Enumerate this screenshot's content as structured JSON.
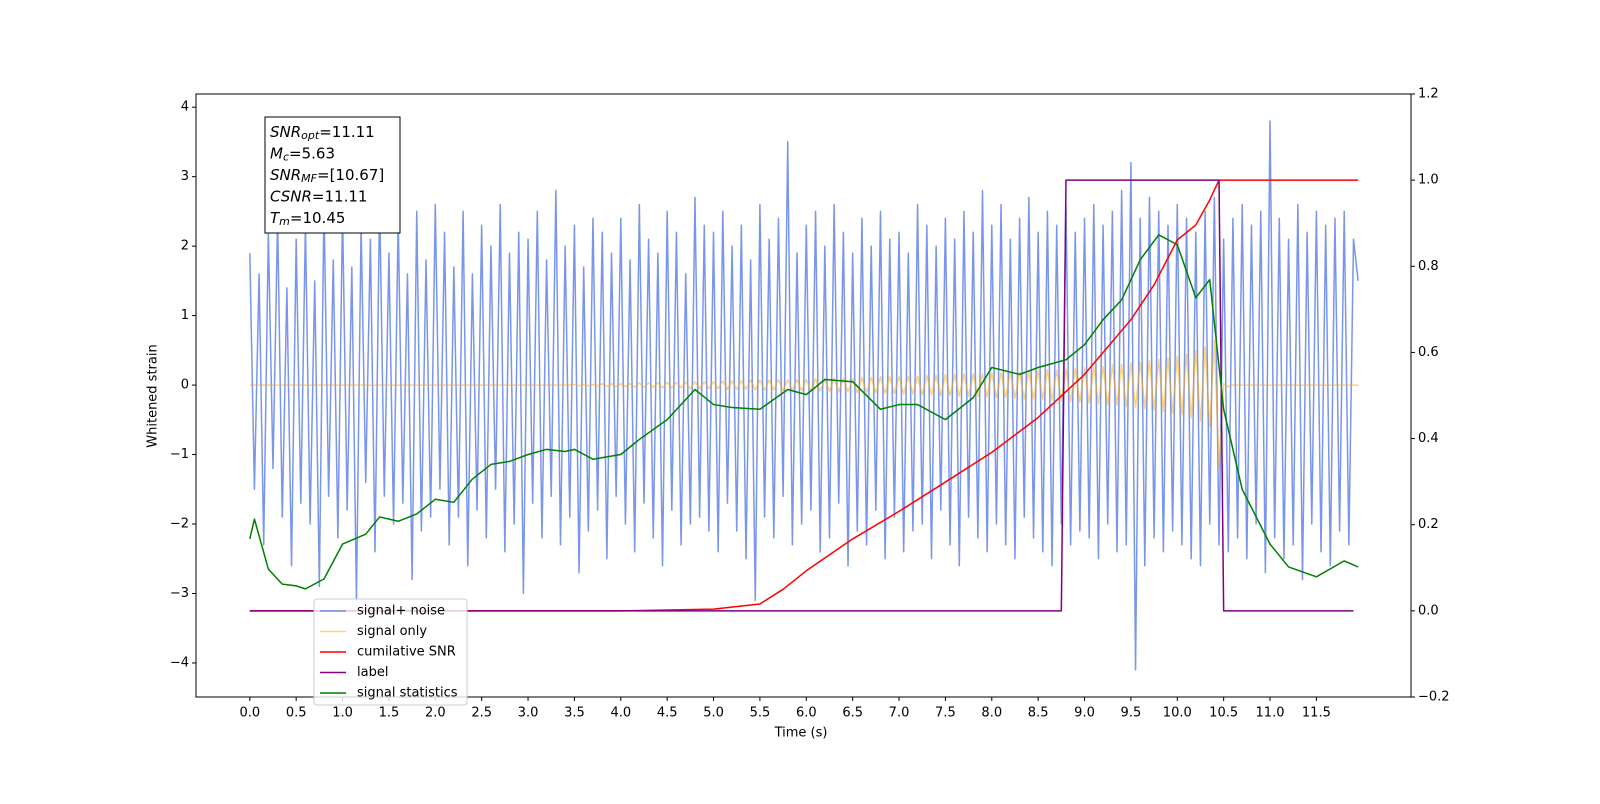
{
  "chart_data": {
    "type": "line",
    "xlabel": "Time (s)",
    "ylabel": "Whitened strain",
    "xlim": [
      -0.58,
      12.52
    ],
    "ylim": [
      -4.49,
      4.19
    ],
    "y2lim": [
      -0.2,
      1.2
    ],
    "xticks": [
      {
        "value": 0,
        "label": "0.0"
      },
      0.5,
      {
        "value": 1,
        "label": "1.0"
      },
      1.5,
      {
        "value": 2,
        "label": "2.0"
      },
      2.5,
      {
        "value": 3,
        "label": "3.0"
      },
      3.5,
      {
        "value": 4,
        "label": "4.0"
      },
      4.5,
      {
        "value": 5,
        "label": "5.0"
      },
      5.5,
      {
        "value": 6,
        "label": "6.0"
      },
      6.5,
      {
        "value": 7,
        "label": "7.0"
      },
      7.5,
      {
        "value": 8,
        "label": "8.0"
      },
      8.5,
      {
        "value": 9,
        "label": "9.0"
      },
      9.5,
      {
        "value": 10,
        "label": "10.0"
      },
      10.5,
      {
        "value": 11,
        "label": "11.0"
      },
      11.5
    ],
    "yticks": [
      {
        "value": -4,
        "label": "−4"
      },
      {
        "value": -3,
        "label": "−3"
      },
      {
        "value": -2,
        "label": "−2"
      },
      {
        "value": -1,
        "label": "−1"
      },
      0,
      1,
      2,
      3,
      4
    ],
    "y2ticks": [
      {
        "value": -0.2,
        "label": "−0.2"
      },
      {
        "value": 0,
        "label": "0.0"
      },
      0.2,
      0.4,
      0.6,
      0.8,
      {
        "value": 1,
        "label": "1.0"
      },
      1.2
    ],
    "legend_loc": "lower left",
    "annotations": [
      {
        "symbol": "SNR",
        "sub": "opt",
        "text": "=11.11"
      },
      {
        "symbol": "M",
        "sub": "c",
        "text": "=5.63"
      },
      {
        "symbol": "SNR",
        "sub": "MF",
        "text": "=[10.67]"
      },
      {
        "symbol": "CSNR",
        "text": "=11.11"
      },
      {
        "symbol": "T",
        "sub": "m",
        "text": "=10.45"
      }
    ],
    "x": [
      0,
      0.05,
      0.1,
      0.15,
      0.2,
      0.25,
      0.3,
      0.35,
      0.4,
      0.45,
      0.5,
      0.55,
      0.6,
      0.65,
      0.7,
      0.75,
      0.8,
      0.85,
      0.9,
      0.95,
      1,
      1.05,
      1.1,
      1.15,
      1.2,
      1.25,
      1.3,
      1.35,
      1.4,
      1.45,
      1.5,
      1.55,
      1.6,
      1.65,
      1.7,
      1.75,
      1.8,
      1.85,
      1.9,
      1.95,
      2,
      2.05,
      2.1,
      2.15,
      2.2,
      2.25,
      2.3,
      2.35,
      2.4,
      2.45,
      2.5,
      2.55,
      2.6,
      2.65,
      2.7,
      2.75,
      2.8,
      2.85,
      2.9,
      2.95,
      3,
      3.05,
      3.1,
      3.15,
      3.2,
      3.25,
      3.3,
      3.35,
      3.4,
      3.45,
      3.5,
      3.55,
      3.6,
      3.65,
      3.7,
      3.75,
      3.8,
      3.85,
      3.9,
      3.95,
      4,
      4.05,
      4.1,
      4.15,
      4.2,
      4.25,
      4.3,
      4.35,
      4.4,
      4.45,
      4.5,
      4.55,
      4.6,
      4.65,
      4.7,
      4.75,
      4.8,
      4.85,
      4.9,
      4.95,
      5,
      5.05,
      5.1,
      5.15,
      5.2,
      5.25,
      5.3,
      5.35,
      5.4,
      5.45,
      5.5,
      5.55,
      5.6,
      5.65,
      5.7,
      5.75,
      5.8,
      5.85,
      5.9,
      5.95,
      6,
      6.05,
      6.1,
      6.15,
      6.2,
      6.25,
      6.3,
      6.35,
      6.4,
      6.45,
      6.5,
      6.55,
      6.6,
      6.65,
      6.7,
      6.75,
      6.8,
      6.85,
      6.9,
      6.95,
      7,
      7.05,
      7.1,
      7.15,
      7.2,
      7.25,
      7.3,
      7.35,
      7.4,
      7.45,
      7.5,
      7.55,
      7.6,
      7.65,
      7.7,
      7.75,
      7.8,
      7.85,
      7.9,
      7.95,
      8,
      8.05,
      8.1,
      8.15,
      8.2,
      8.25,
      8.3,
      8.35,
      8.4,
      8.45,
      8.5,
      8.55,
      8.6,
      8.65,
      8.7,
      8.75,
      8.8,
      8.85,
      8.9,
      8.95,
      9,
      9.05,
      9.1,
      9.15,
      9.2,
      9.25,
      9.3,
      9.35,
      9.4,
      9.45,
      9.5,
      9.55,
      9.6,
      9.65,
      9.7,
      9.75,
      9.8,
      9.85,
      9.9,
      9.95,
      10,
      10.05,
      10.1,
      10.15,
      10.2,
      10.25,
      10.3,
      10.35,
      10.4,
      10.45,
      10.5,
      10.55,
      10.6,
      10.65,
      10.7,
      10.75,
      10.8,
      10.85,
      10.9,
      10.95,
      11,
      11.05,
      11.1,
      11.15,
      11.2,
      11.25,
      11.3,
      11.35,
      11.4,
      11.45,
      11.5,
      11.55,
      11.6,
      11.65,
      11.7,
      11.75,
      11.8,
      11.85,
      11.9,
      11.95
    ],
    "series": [
      {
        "name": "signal+ noise",
        "color": "#4169e1",
        "alpha": 0.7,
        "values": [
          1.9,
          -1.5,
          1.6,
          -2.3,
          2.2,
          -1.2,
          2.4,
          -1.9,
          1.4,
          -2.6,
          2.1,
          -1.7,
          2.3,
          -2.0,
          1.5,
          -2.9,
          2.6,
          -1.6,
          1.8,
          -2.2,
          2.5,
          -1.8,
          1.7,
          -3.1,
          2.3,
          -1.4,
          2.1,
          -2.4,
          2.7,
          -1.6,
          1.9,
          -2.0,
          2.4,
          -1.7,
          1.6,
          -2.8,
          2.5,
          -2.1,
          1.8,
          -1.9,
          2.6,
          -1.5,
          2.2,
          -2.3,
          1.7,
          -1.9,
          2.5,
          -2.6,
          1.6,
          -1.8,
          2.3,
          -2.2,
          2.0,
          -1.5,
          2.6,
          -2.4,
          1.9,
          -2.0,
          2.2,
          -3.0,
          2.1,
          -1.7,
          2.5,
          -2.2,
          1.8,
          -1.6,
          2.8,
          -2.3,
          2.0,
          -1.9,
          2.3,
          -2.7,
          1.7,
          -2.1,
          2.4,
          -1.8,
          2.2,
          -2.5,
          1.9,
          -1.6,
          2.4,
          -2.0,
          1.8,
          -2.4,
          2.6,
          -1.7,
          2.1,
          -2.2,
          1.9,
          -2.6,
          2.5,
          -1.8,
          2.2,
          -2.3,
          1.6,
          -2.0,
          2.7,
          -1.9,
          2.3,
          -2.1,
          2.2,
          -2.4,
          2.5,
          -1.7,
          2.0,
          -2.1,
          2.3,
          -2.5,
          1.8,
          -3.1,
          2.6,
          -1.9,
          2.1,
          -2.2,
          2.4,
          -1.6,
          3.5,
          -2.3,
          1.9,
          -2.0,
          2.3,
          -1.8,
          2.5,
          -2.4,
          2.0,
          -2.2,
          2.6,
          -1.7,
          2.2,
          -2.6,
          1.9,
          -2.1,
          2.4,
          -2.3,
          2.0,
          -1.8,
          2.5,
          -2.5,
          2.1,
          -1.9,
          2.2,
          -2.4,
          1.9,
          -2.1,
          2.6,
          -2.0,
          2.3,
          -2.5,
          2.0,
          -1.8,
          2.4,
          -2.3,
          2.1,
          -2.6,
          2.5,
          -1.9,
          2.2,
          -2.2,
          2.8,
          -2.4,
          2.3,
          -2.0,
          2.6,
          -2.3,
          2.1,
          -2.5,
          2.4,
          -1.9,
          2.7,
          -2.2,
          2.2,
          -2.4,
          2.5,
          -2.6,
          2.3,
          -2.0,
          2.6,
          -2.3,
          2.2,
          -2.1,
          2.4,
          -2.2,
          2.6,
          -2.5,
          2.3,
          -2.0,
          2.5,
          -2.4,
          2.8,
          -2.3,
          3.2,
          -4.1,
          2.4,
          -2.6,
          2.7,
          -2.2,
          2.5,
          -2.4,
          2.3,
          -2.1,
          2.6,
          -2.3,
          2.4,
          -2.5,
          2.2,
          -2.6,
          2.5,
          -2.0,
          2.7,
          -2.3,
          2.1,
          -2.4,
          2.4,
          -2.2,
          2.6,
          -2.5,
          2.3,
          -2.0,
          2.5,
          -2.7,
          3.8,
          -2.2,
          2.4,
          -2.5,
          2.1,
          -2.3,
          2.6,
          -2.8,
          2.2,
          -2.0,
          2.5,
          -2.4,
          2.3,
          -2.6,
          2.4,
          -2.1,
          2.5,
          -2.3,
          2.1,
          1.5
        ]
      },
      {
        "name": "signal only",
        "color": "#ffa500",
        "alpha": 0.5,
        "values": [
          0,
          0,
          0,
          0,
          0,
          0,
          0,
          0,
          0,
          0,
          0,
          0,
          0,
          0,
          0,
          0,
          0,
          0,
          0,
          0,
          0,
          0,
          0,
          0,
          0,
          0,
          0,
          0,
          0,
          0,
          0,
          0,
          0,
          0,
          0,
          0,
          0,
          0,
          0,
          0,
          0,
          0,
          0,
          0,
          0,
          0,
          0,
          0,
          0,
          0,
          0,
          0,
          0,
          0,
          0,
          0,
          0,
          0,
          0,
          0,
          0,
          0,
          0,
          0,
          0,
          0,
          0,
          0,
          0,
          0,
          0.01,
          -0.01,
          0.01,
          -0.01,
          0.01,
          -0.01,
          0.02,
          -0.02,
          0.02,
          -0.02,
          0.02,
          -0.02,
          0.02,
          -0.03,
          0.03,
          -0.03,
          0.03,
          -0.03,
          0.03,
          -0.04,
          0.04,
          -0.04,
          0.04,
          -0.04,
          0.04,
          -0.05,
          0.05,
          -0.05,
          0.05,
          -0.05,
          0.05,
          -0.05,
          0.06,
          -0.06,
          0.06,
          -0.06,
          0.06,
          -0.06,
          0.07,
          -0.07,
          0.07,
          -0.07,
          0.07,
          -0.07,
          0.08,
          -0.08,
          0.08,
          -0.08,
          0.08,
          -0.08,
          0.08,
          -0.09,
          0.09,
          -0.09,
          0.09,
          -0.09,
          0.1,
          -0.1,
          0.1,
          -0.1,
          0.1,
          -0.11,
          0.11,
          -0.11,
          0.11,
          -0.11,
          0.12,
          -0.12,
          0.12,
          -0.12,
          0.12,
          -0.13,
          0.13,
          -0.13,
          0.13,
          -0.14,
          0.14,
          -0.14,
          0.14,
          -0.15,
          0.15,
          -0.15,
          0.15,
          -0.16,
          0.16,
          -0.16,
          0.16,
          -0.17,
          0.17,
          -0.17,
          0.17,
          -0.18,
          0.18,
          -0.18,
          0.19,
          -0.19,
          0.19,
          -0.2,
          0.2,
          -0.2,
          0.21,
          -0.21,
          0.22,
          -0.22,
          0.22,
          -0.23,
          0.23,
          -0.24,
          0.24,
          -0.25,
          0.25,
          -0.26,
          0.26,
          -0.27,
          0.27,
          -0.28,
          0.29,
          -0.29,
          0.3,
          -0.31,
          0.32,
          -0.32,
          0.33,
          -0.34,
          0.35,
          -0.36,
          0.37,
          -0.38,
          0.39,
          -0.4,
          0.42,
          -0.43,
          0.45,
          -0.47,
          0.49,
          -0.52,
          0.55,
          -0.6,
          0.65,
          -1.2,
          0.02,
          -0.02,
          0,
          0,
          0,
          0,
          0,
          0,
          0,
          0,
          0,
          0,
          0,
          0,
          0,
          0,
          0,
          0,
          0,
          0,
          0,
          0,
          0,
          0,
          0,
          0,
          0,
          0,
          0,
          0
        ]
      },
      {
        "name": "cumilative SNR",
        "color": "#ff0000",
        "axis": "y2",
        "x": [
          0,
          4,
          5,
          5.5,
          5.75,
          6,
          6.5,
          7,
          7.5,
          8,
          8.5,
          9,
          9.5,
          9.75,
          10,
          10.2,
          10.35,
          10.45,
          10.5,
          11.95
        ],
        "values": [
          0,
          0,
          0.004,
          0.016,
          0.05,
          0.093,
          0.167,
          0.231,
          0.299,
          0.368,
          0.449,
          0.549,
          0.676,
          0.757,
          0.861,
          0.896,
          0.954,
          1.0,
          1.0,
          1.0
        ]
      },
      {
        "name": "label",
        "color": "#800080",
        "axis": "y2",
        "x": [
          0,
          8.75,
          8.8,
          10.45,
          10.5,
          11.9
        ],
        "values": [
          0,
          0,
          1,
          1,
          0,
          0
        ]
      },
      {
        "name": "signal statistics",
        "color": "#008000",
        "axis": "y2",
        "x": [
          0,
          0.05,
          0.2,
          0.35,
          0.5,
          0.6,
          0.8,
          1.0,
          1.25,
          1.4,
          1.6,
          1.8,
          2.0,
          2.2,
          2.4,
          2.6,
          2.8,
          3.0,
          3.2,
          3.4,
          3.5,
          3.7,
          4.0,
          4.2,
          4.5,
          4.8,
          5.0,
          5.2,
          5.5,
          5.8,
          6.0,
          6.2,
          6.5,
          6.8,
          7.0,
          7.2,
          7.5,
          7.8,
          8.0,
          8.3,
          8.5,
          8.8,
          9.0,
          9.2,
          9.4,
          9.6,
          9.8,
          10.0,
          10.2,
          10.35,
          10.5,
          10.7,
          11.0,
          11.2,
          11.5,
          11.8,
          11.95
        ],
        "values": [
          0.167,
          0.213,
          0.097,
          0.062,
          0.058,
          0.051,
          0.074,
          0.155,
          0.178,
          0.218,
          0.208,
          0.225,
          0.259,
          0.252,
          0.306,
          0.34,
          0.347,
          0.363,
          0.375,
          0.37,
          0.375,
          0.352,
          0.363,
          0.398,
          0.444,
          0.514,
          0.479,
          0.472,
          0.468,
          0.514,
          0.502,
          0.537,
          0.532,
          0.468,
          0.479,
          0.479,
          0.444,
          0.495,
          0.565,
          0.549,
          0.565,
          0.583,
          0.618,
          0.676,
          0.722,
          0.815,
          0.873,
          0.85,
          0.727,
          0.769,
          0.468,
          0.282,
          0.155,
          0.102,
          0.079,
          0.116,
          0.102
        ]
      }
    ]
  }
}
